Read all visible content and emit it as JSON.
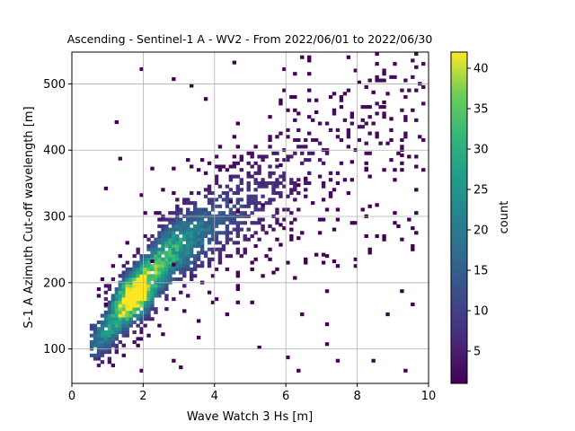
{
  "chart_data": {
    "type": "heatmap",
    "title": "Ascending - Sentinel-1 A - WV2 - From 2022/06/01 to 2022/06/30",
    "xlabel": "Wave Watch 3 Hs [m]",
    "ylabel": "S-1 A Azimuth Cut-off wavelength [m]",
    "xlim": [
      0,
      10
    ],
    "ylim": [
      48,
      548
    ],
    "xticks": [
      "0",
      "2",
      "4",
      "6",
      "8",
      "10"
    ],
    "yticks": [
      "100",
      "200",
      "300",
      "400",
      "500"
    ],
    "grid": true,
    "colorbar": {
      "label": "count",
      "colormap": "viridis",
      "range": [
        1,
        42
      ],
      "ticks": [
        "5",
        "10",
        "15",
        "20",
        "25",
        "30",
        "35",
        "40"
      ]
    },
    "bins": {
      "x_width_m": 0.1,
      "y_height_m": 5
    },
    "density_ridge": {
      "x": [
        0.6,
        1.0,
        1.5,
        1.8,
        2.0,
        2.5,
        3.0,
        4.0,
        5.0,
        6.0,
        7.0,
        8.0,
        9.0
      ],
      "y": [
        110,
        130,
        165,
        185,
        200,
        230,
        255,
        290,
        320,
        355,
        390,
        430,
        470
      ],
      "peak_count": 42,
      "peak_at": [
        1.7,
        180
      ]
    }
  }
}
